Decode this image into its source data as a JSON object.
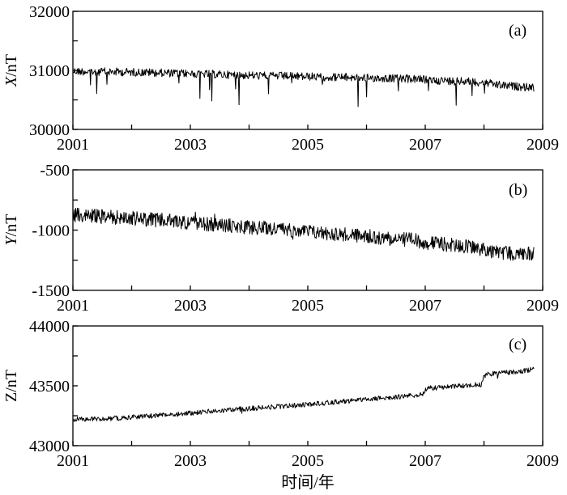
{
  "chart_data": [
    {
      "type": "line",
      "panel_label": "(a)",
      "ylabel_var": "X",
      "ylabel_unit": "/nT",
      "xlim": [
        2001,
        2009
      ],
      "ylim": [
        30000,
        32000
      ],
      "xticks": [
        2001,
        2003,
        2005,
        2007,
        2009
      ],
      "xtick_labels": [
        "2001",
        "2003",
        "2005",
        "2007",
        "2009"
      ],
      "yticks": [
        30000,
        31000,
        32000
      ],
      "ytick_labels": [
        "30000",
        "31000",
        "32000"
      ],
      "series": [
        {
          "x": [
            2001.0,
            2001.25,
            2001.5,
            2001.75,
            2002.0,
            2002.25,
            2002.5,
            2002.75,
            2003.0,
            2003.25,
            2003.5,
            2003.75,
            2004.0,
            2004.25,
            2004.5,
            2004.75,
            2005.0,
            2005.25,
            2005.5,
            2005.75,
            2006.0,
            2006.25,
            2006.5,
            2006.75,
            2007.0,
            2007.25,
            2007.5,
            2007.75,
            2008.0,
            2008.25,
            2008.5,
            2008.75,
            2008.85
          ],
          "y": [
            30985,
            30982,
            30978,
            30974,
            30970,
            30966,
            30958,
            30950,
            30945,
            30940,
            30930,
            30922,
            30915,
            30910,
            30905,
            30900,
            30895,
            30890,
            30885,
            30880,
            30875,
            30870,
            30862,
            30855,
            30840,
            30828,
            30818,
            30810,
            30795,
            30750,
            30730,
            30715,
            30705
          ]
        }
      ]
    },
    {
      "type": "line",
      "panel_label": "(b)",
      "ylabel_var": "Y",
      "ylabel_unit": "/nT",
      "xlim": [
        2001,
        2009
      ],
      "ylim": [
        -1500,
        -500
      ],
      "xticks": [
        2001,
        2003,
        2005,
        2007,
        2009
      ],
      "xtick_labels": [
        "2001",
        "2003",
        "2005",
        "2007",
        "2009"
      ],
      "yticks": [
        -1500,
        -1000,
        -500
      ],
      "ytick_labels": [
        "-1500",
        "-1000",
        "-500"
      ],
      "series": [
        {
          "x": [
            2001.0,
            2001.25,
            2001.5,
            2001.75,
            2002.0,
            2002.25,
            2002.5,
            2002.75,
            2003.0,
            2003.25,
            2003.5,
            2003.75,
            2004.0,
            2004.25,
            2004.5,
            2004.75,
            2005.0,
            2005.25,
            2005.5,
            2005.75,
            2006.0,
            2006.25,
            2006.5,
            2006.75,
            2007.0,
            2007.25,
            2007.5,
            2007.75,
            2008.0,
            2008.25,
            2008.5,
            2008.75,
            2008.85
          ],
          "y": [
            -878,
            -880,
            -888,
            -895,
            -902,
            -910,
            -918,
            -928,
            -938,
            -948,
            -958,
            -968,
            -976,
            -984,
            -992,
            -1000,
            -1012,
            -1022,
            -1032,
            -1042,
            -1052,
            -1062,
            -1072,
            -1082,
            -1100,
            -1115,
            -1128,
            -1140,
            -1160,
            -1188,
            -1195,
            -1195,
            -1196
          ]
        }
      ]
    },
    {
      "type": "line",
      "panel_label": "(c)",
      "ylabel_var": "Z",
      "ylabel_unit": "/nT",
      "xlim": [
        2001,
        2009
      ],
      "ylim": [
        43000,
        44000
      ],
      "xticks": [
        2001,
        2003,
        2005,
        2007,
        2009
      ],
      "xtick_labels": [
        "2001",
        "2003",
        "2005",
        "2007",
        "2009"
      ],
      "yticks": [
        43000,
        43500,
        44000
      ],
      "ytick_labels": [
        "43000",
        "43500",
        "44000"
      ],
      "xlabel": "时间/年",
      "series": [
        {
          "x": [
            2001.0,
            2001.25,
            2001.5,
            2001.75,
            2002.0,
            2002.25,
            2002.5,
            2002.75,
            2003.0,
            2003.25,
            2003.5,
            2003.75,
            2004.0,
            2004.25,
            2004.5,
            2004.75,
            2005.0,
            2005.25,
            2005.5,
            2005.75,
            2006.0,
            2006.25,
            2006.5,
            2006.75,
            2006.95,
            2007.0,
            2007.05,
            2007.25,
            2007.5,
            2007.75,
            2007.95,
            2008.0,
            2008.05,
            2008.25,
            2008.5,
            2008.75,
            2008.85
          ],
          "y": [
            43222,
            43222,
            43225,
            43230,
            43240,
            43245,
            43255,
            43265,
            43272,
            43282,
            43292,
            43302,
            43310,
            43318,
            43326,
            43335,
            43344,
            43355,
            43366,
            43376,
            43386,
            43396,
            43406,
            43418,
            43428,
            43465,
            43480,
            43486,
            43494,
            43504,
            43512,
            43570,
            43598,
            43606,
            43616,
            43630,
            43642
          ]
        }
      ]
    }
  ]
}
